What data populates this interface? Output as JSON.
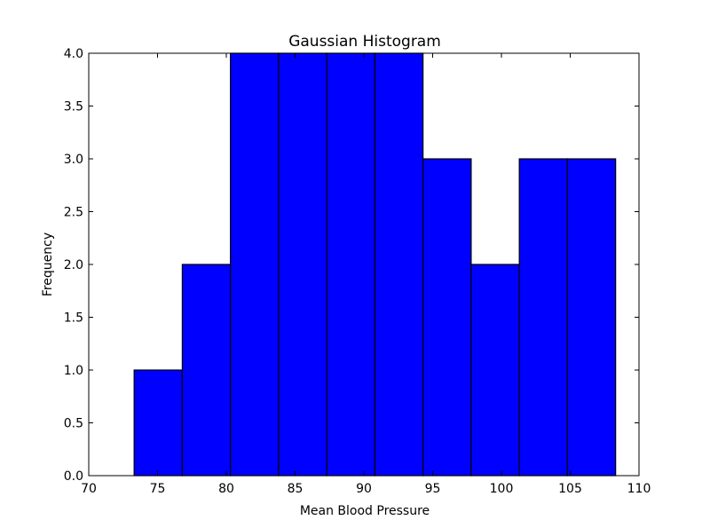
{
  "chart_data": {
    "type": "bar",
    "title": "Gaussian Histogram",
    "xlabel": "Mean Blood Pressure",
    "ylabel": "Frequency",
    "xlim": [
      70,
      110
    ],
    "ylim": [
      0,
      4.0
    ],
    "grid": false,
    "bar_color": "#0000ff",
    "edge_color": "#000000",
    "bins": [
      {
        "x0": 73.3,
        "x1": 76.8,
        "count": 1
      },
      {
        "x0": 76.8,
        "x1": 80.3,
        "count": 2
      },
      {
        "x0": 80.3,
        "x1": 83.8,
        "count": 4
      },
      {
        "x0": 83.8,
        "x1": 87.3,
        "count": 4
      },
      {
        "x0": 87.3,
        "x1": 90.8,
        "count": 4
      },
      {
        "x0": 90.8,
        "x1": 94.3,
        "count": 4
      },
      {
        "x0": 94.3,
        "x1": 97.8,
        "count": 3
      },
      {
        "x0": 97.8,
        "x1": 101.3,
        "count": 2
      },
      {
        "x0": 101.3,
        "x1": 104.8,
        "count": 3
      },
      {
        "x0": 104.8,
        "x1": 108.3,
        "count": 3
      }
    ],
    "xticks": [
      "70",
      "75",
      "80",
      "85",
      "90",
      "95",
      "100",
      "105",
      "110"
    ],
    "xtick_values": [
      70,
      75,
      80,
      85,
      90,
      95,
      100,
      105,
      110
    ],
    "yticks": [
      "0.0",
      "0.5",
      "1.0",
      "1.5",
      "2.0",
      "2.5",
      "3.0",
      "3.5",
      "4.0"
    ],
    "ytick_values": [
      0,
      0.5,
      1.0,
      1.5,
      2.0,
      2.5,
      3.0,
      3.5,
      4.0
    ]
  }
}
